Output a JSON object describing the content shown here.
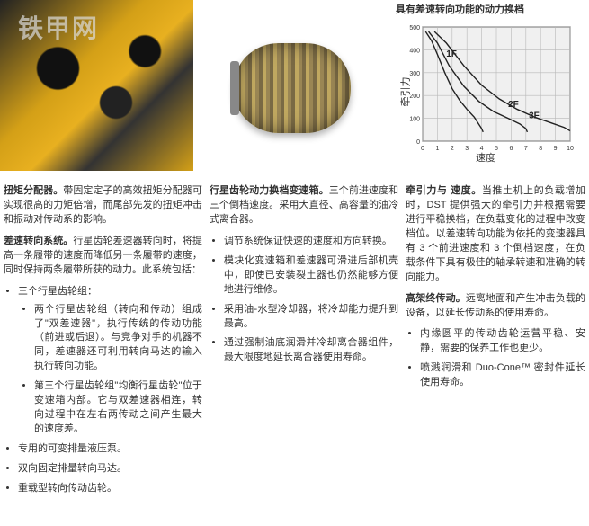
{
  "watermark": "铁甲网",
  "chart": {
    "title": "具有差速转向功能的动力换档",
    "ylabel": "牵引力",
    "xlabel": "速度",
    "ylim": [
      0,
      500
    ],
    "xlim": [
      0,
      10
    ],
    "ytick_step": 100,
    "xtick_step": 1,
    "background_color": "#f0f0f0",
    "grid_color": "#b8b8b8",
    "axis_color": "#333333",
    "curves": [
      {
        "label": "1F",
        "label_xy": [
          1.6,
          370
        ],
        "points": [
          [
            0.2,
            480
          ],
          [
            0.6,
            440
          ],
          [
            1.0,
            380
          ],
          [
            1.5,
            300
          ],
          [
            2.0,
            230
          ],
          [
            2.5,
            180
          ],
          [
            3.0,
            140
          ],
          [
            3.5,
            105
          ],
          [
            4.0,
            55
          ],
          [
            4.1,
            40
          ]
        ]
      },
      {
        "label": "2F",
        "label_xy": [
          5.8,
          150
        ],
        "points": [
          [
            0.4,
            480
          ],
          [
            1.0,
            430
          ],
          [
            1.8,
            330
          ],
          [
            2.8,
            240
          ],
          [
            3.8,
            175
          ],
          [
            4.8,
            130
          ],
          [
            5.8,
            100
          ],
          [
            6.6,
            75
          ],
          [
            7.0,
            55
          ],
          [
            7.1,
            40
          ]
        ]
      },
      {
        "label": "3F",
        "label_xy": [
          7.2,
          100
        ],
        "points": [
          [
            0.8,
            480
          ],
          [
            1.6,
            430
          ],
          [
            2.8,
            330
          ],
          [
            4.0,
            245
          ],
          [
            5.2,
            185
          ],
          [
            6.4,
            140
          ],
          [
            7.6,
            105
          ],
          [
            8.8,
            78
          ],
          [
            9.6,
            60
          ],
          [
            10.0,
            45
          ]
        ]
      }
    ],
    "curve_color": "#222222",
    "curve_width": 1.4,
    "label_fontsize": 10
  },
  "col1": {
    "p1_head": "扭矩分配器。",
    "p1_body": "带固定定子的高效扭矩分配器可实现很高的力矩倍增，而尾部先发的扭矩冲击和振动对传动系的影响。",
    "p2_head": "差速转向系统。",
    "p2_body": "行星齿轮差速器转向时，将提高一条履带的速度而降低另一条履带的速度，同时保持两条履带所获的动力。此系统包括：",
    "b1": "三个行星齿轮组：",
    "b1a": "两个行星齿轮组（转向和传动）组成了\"双差速器\"，执行传统的传动功能（前进或后退）。与竞争对手的机器不同，差速器还可利用转向马达的输入执行转向功能。",
    "b1b": "第三个行星齿轮组\"均衡行星齿轮\"位于变速箱内部。它与双差速器相连，转向过程中在左右两传动之间产生最大的速度差。",
    "b2": "专用的可变排量液压泵。",
    "b3": "双向固定排量转向马达。",
    "b4": "重载型转向传动齿轮。"
  },
  "col2": {
    "p1_head": "行星齿轮动力换档变速箱。",
    "p1_body": "三个前进速度和三个倒档速度。采用大直径、高容量的油冷式离合器。",
    "b1": "调节系统保证快速的速度和方向转换。",
    "b2": "模块化变速箱和差速器可滑进后部机壳中，即使已安装裂土器也仍然能够方便地进行维修。",
    "b3": "采用油-水型冷却器，将冷却能力提升到最高。",
    "b4": "通过强制油底润滑并冷却离合器组件，最大限度地延长离合器使用寿命。"
  },
  "col3": {
    "p1_head": "牵引力与 速度。",
    "p1_body": "当推土机上的负载增加时，DST 提供强大的牵引力并根据需要进行平稳换档，在负载变化的过程中改变档位。以差速转向功能为依托的变速器具有 3 个前进速度和 3 个倒档速度，在负载条件下具有极佳的轴承转速和准确的转向能力。",
    "p2_head": "高架终传动。",
    "p2_body": "远离地面和产生冲击负载的设备，以延长传动系的使用寿命。",
    "b1": "内缘圆平的传动齿轮运营平稳、安静，需要的保养工作也更少。",
    "b2": "喷溅润滑和 Duo-Cone™ 密封件延长使用寿命。"
  }
}
